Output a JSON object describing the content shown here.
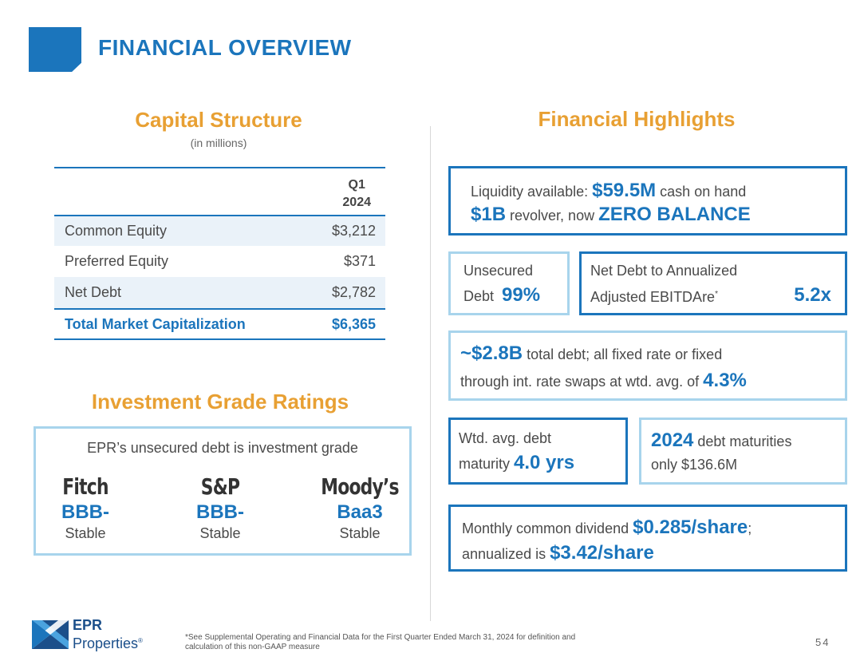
{
  "header": {
    "title": "FINANCIAL OVERVIEW"
  },
  "capital_structure": {
    "title": "Capital Structure",
    "subtitle": "(in millions)",
    "column_header_line1": "Q1",
    "column_header_line2": "2024",
    "rows": [
      {
        "label": "Common Equity",
        "value": "$3,212"
      },
      {
        "label": "Preferred Equity",
        "value": "$371"
      },
      {
        "label": "Net Debt",
        "value": "$2,782"
      }
    ],
    "total": {
      "label": "Total Market Capitalization",
      "value": "$6,365"
    }
  },
  "ratings": {
    "title": "Investment Grade Ratings",
    "intro": "EPR’s unsecured debt is investment grade",
    "agencies": [
      {
        "name": "Fitch",
        "grade": "BBB-",
        "outlook": "Stable"
      },
      {
        "name": "S&P",
        "grade": "BBB-",
        "outlook": "Stable"
      },
      {
        "name": "Moody’s",
        "grade": "Baa3",
        "outlook": "Stable"
      }
    ]
  },
  "highlights": {
    "title": "Financial Highlights",
    "liquidity": {
      "prefix": "Liquidity available: ",
      "cash": "$59.5M",
      "cash_suffix": " cash on hand",
      "revolver": "$1B",
      "revolver_mid": " revolver, now ",
      "balance": "ZERO BALANCE"
    },
    "unsecured": {
      "line1": "Unsecured",
      "line2": "Debt",
      "value": "99%"
    },
    "net_debt": {
      "line1": "Net Debt to Annualized",
      "line2": "Adjusted EBITDAre",
      "marker": "*",
      "value": "5.2x"
    },
    "total_debt": {
      "amount": "~$2.8B",
      "line1_suffix": " total debt; all fixed rate or fixed",
      "line2_prefix": "through int. rate swaps at wtd. avg. of ",
      "rate": "4.3%"
    },
    "maturity": {
      "line1": "Wtd. avg. debt",
      "line2_prefix": "maturity ",
      "value": "4.0 yrs"
    },
    "maturities_2024": {
      "year": "2024",
      "line1_suffix": " debt maturities",
      "line2": "only $136.6M"
    },
    "dividend": {
      "line1_prefix": "Monthly common dividend ",
      "monthly": "$0.285/share",
      "line1_suffix": ";",
      "line2_prefix": "annualized is ",
      "annual": "$3.42/share"
    }
  },
  "footer": {
    "logo_line1": "EPR",
    "logo_line2": "Properties",
    "logo_mark": "®",
    "footnote_line1": "*See Supplemental Operating and Financial Data for the First Quarter Ended March 31, 2024 for definition and",
    "footnote_line2": "calculation of this non-GAAP measure",
    "page_number": "54"
  },
  "colors": {
    "primary_blue": "#1b75bc",
    "accent_orange": "#e8a033",
    "light_blue_border": "#a8d4ec",
    "row_shade": "#eaf2f9"
  }
}
